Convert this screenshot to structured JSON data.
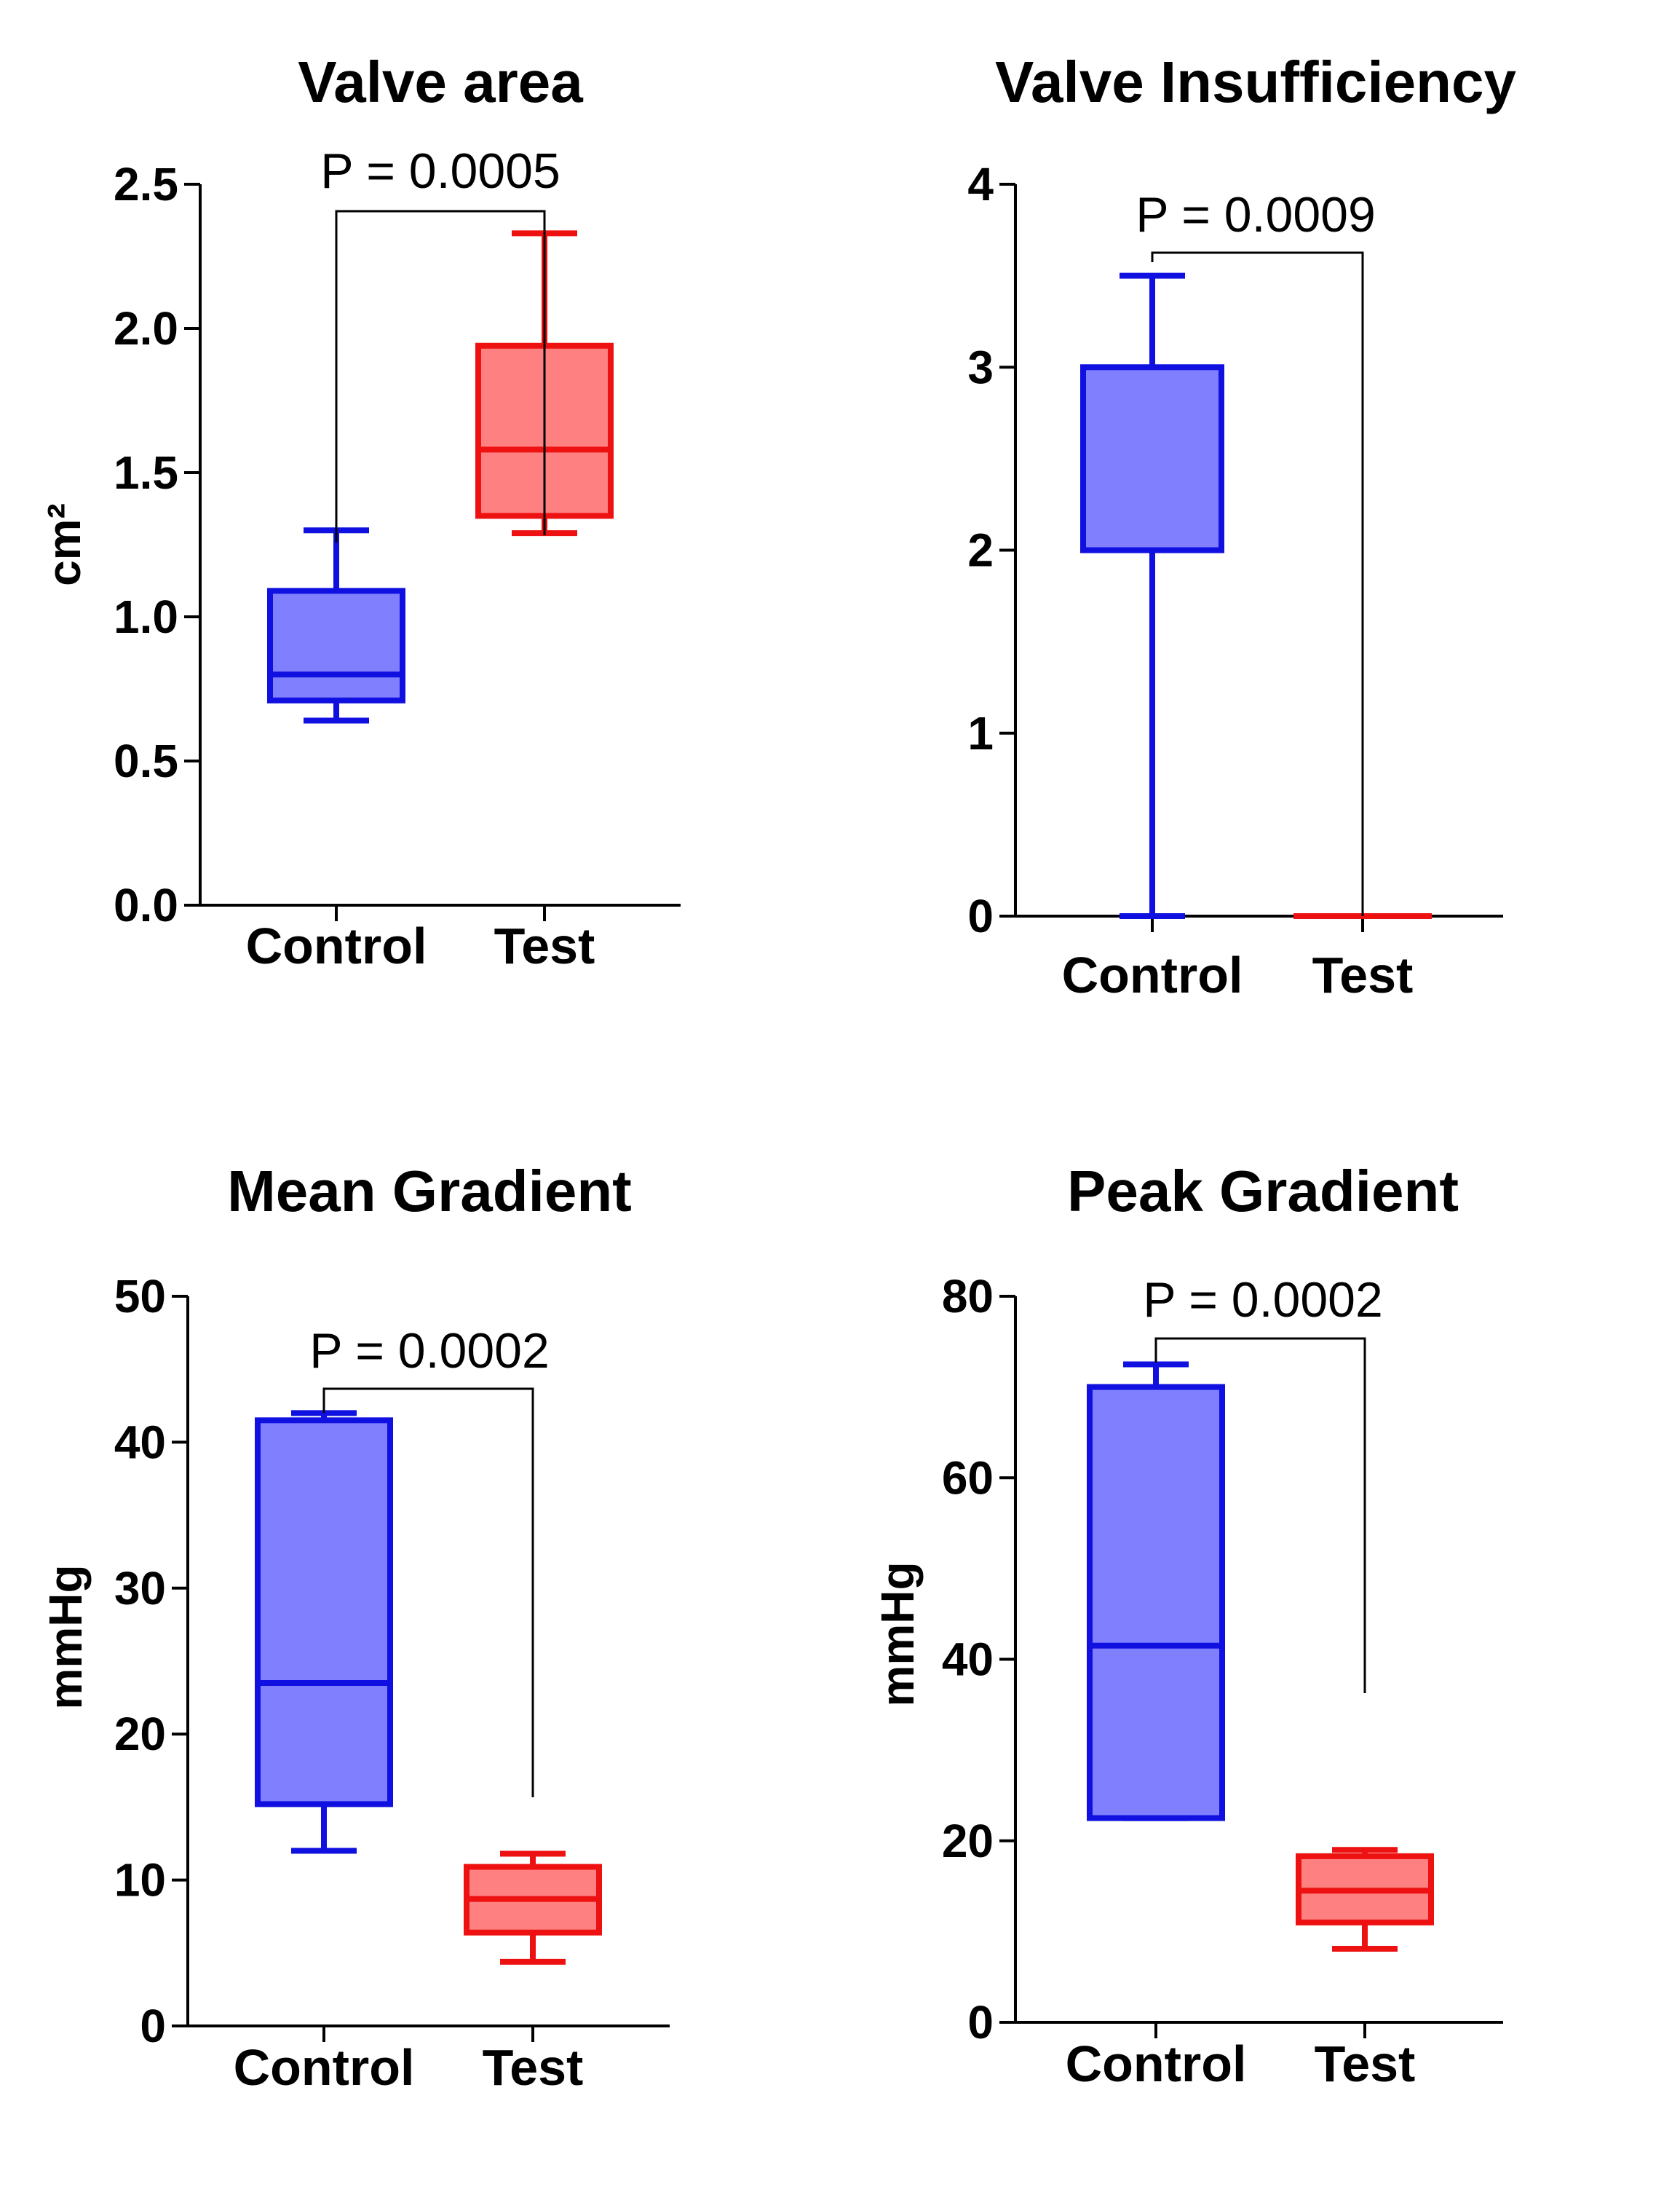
{
  "colors": {
    "control_stroke": "#1010e0",
    "control_fill": "#8080ff",
    "test_stroke": "#ee1111",
    "test_fill": "#ff8080",
    "axis": "#000000"
  },
  "chart_data": [
    {
      "type": "box",
      "title": "Valve area",
      "ylabel": "cm²",
      "ylim": [
        0,
        2.5
      ],
      "yticks": [
        "0.0",
        "0.5",
        "1.0",
        "1.5",
        "2.0",
        "2.5"
      ],
      "ytick_values": [
        0,
        0.5,
        1.0,
        1.5,
        2.0,
        2.5
      ],
      "categories": [
        "Control",
        "Test"
      ],
      "boxes": [
        {
          "name": "Control",
          "min": 0.64,
          "q1": 0.71,
          "median": 0.8,
          "q3": 1.09,
          "max": 1.3
        },
        {
          "name": "Test",
          "min": 1.29,
          "q1": 1.35,
          "median": 1.58,
          "q3": 1.94,
          "max": 2.33
        }
      ],
      "pvalue": "P = 0.0005"
    },
    {
      "type": "box",
      "title": "Valve Insufficiency",
      "ylabel": "",
      "ylim": [
        0,
        4
      ],
      "yticks": [
        "0",
        "1",
        "2",
        "3",
        "4"
      ],
      "ytick_values": [
        0,
        1,
        2,
        3,
        4
      ],
      "categories": [
        "Control",
        "Test"
      ],
      "boxes": [
        {
          "name": "Control",
          "min": 0,
          "q1": 2.0,
          "median": 2.0,
          "q3": 3.0,
          "max": 3.5
        },
        {
          "name": "Test",
          "min": 0,
          "q1": 0,
          "median": 0,
          "q3": 0,
          "max": 0
        }
      ],
      "pvalue": "P = 0.0009"
    },
    {
      "type": "box",
      "title": "Mean Gradient",
      "ylabel": "mmHg",
      "ylim": [
        0,
        50
      ],
      "yticks": [
        "0",
        "10",
        "20",
        "30",
        "40",
        "50"
      ],
      "ytick_values": [
        0,
        10,
        20,
        30,
        40,
        50
      ],
      "categories": [
        "Control",
        "Test"
      ],
      "boxes": [
        {
          "name": "Control",
          "min": 12.0,
          "q1": 15.2,
          "median": 23.5,
          "q3": 41.5,
          "max": 42.0
        },
        {
          "name": "Test",
          "min": 4.4,
          "q1": 6.4,
          "median": 8.7,
          "q3": 10.9,
          "max": 11.8
        }
      ],
      "pvalue": "P = 0.0002"
    },
    {
      "type": "box",
      "title": "Peak Gradient",
      "ylabel": "mmHg",
      "ylim": [
        0,
        80
      ],
      "yticks": [
        "0",
        "20",
        "40",
        "60",
        "80"
      ],
      "ytick_values": [
        0,
        20,
        40,
        60,
        80
      ],
      "categories": [
        "Control",
        "Test"
      ],
      "boxes": [
        {
          "name": "Control",
          "min": 22.5,
          "q1": 22.5,
          "median": 41.5,
          "q3": 70.0,
          "max": 72.5
        },
        {
          "name": "Test",
          "min": 8.1,
          "q1": 11.0,
          "median": 14.5,
          "q3": 18.3,
          "max": 19.0
        }
      ],
      "pvalue": "P = 0.0002"
    }
  ]
}
